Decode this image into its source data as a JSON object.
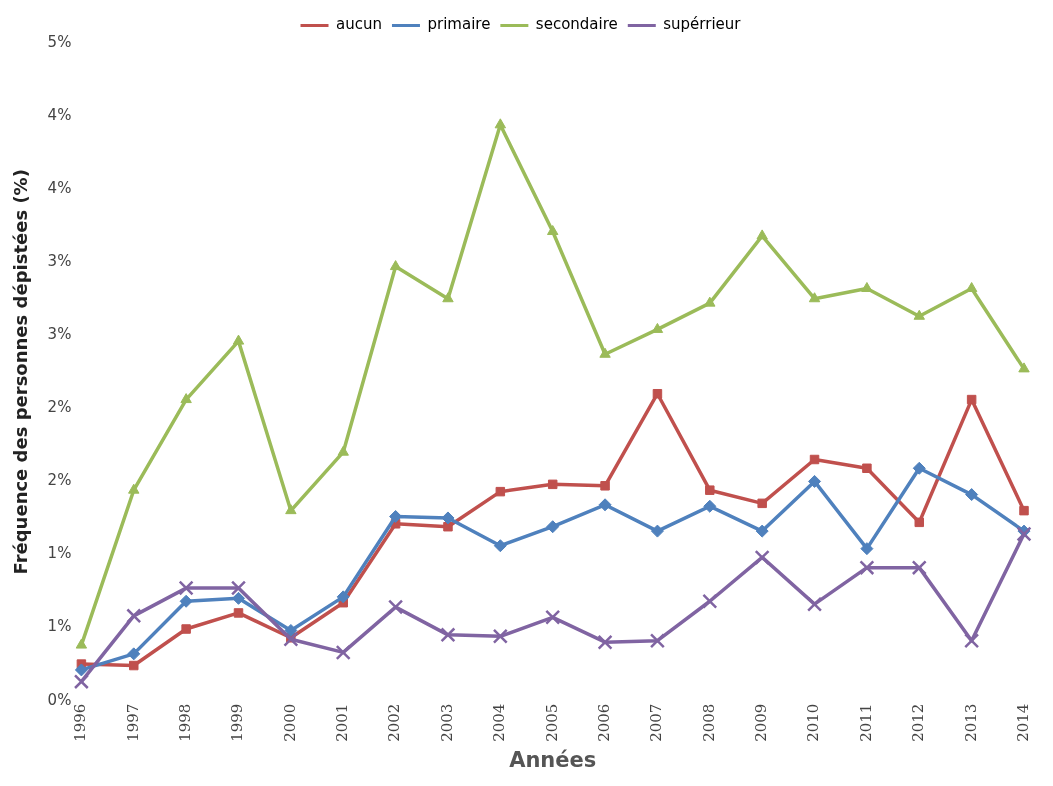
{
  "chart_data": {
    "type": "line",
    "xlabel": "Années",
    "ylabel": "Fréquence des personnes dépistées (%)",
    "categories": [
      "1996",
      "1997",
      "1998",
      "1999",
      "2000",
      "2001",
      "2002",
      "2003",
      "2004",
      "2005",
      "2006",
      "2007",
      "2008",
      "2009",
      "2010",
      "2011",
      "2012",
      "2013",
      "2014"
    ],
    "ylim": [
      0,
      4.5
    ],
    "yticks": [
      {
        "value": 0,
        "label": "0%"
      },
      {
        "value": 0.5,
        "label": "1%"
      },
      {
        "value": 1,
        "label": "1%"
      },
      {
        "value": 1.5,
        "label": "2%"
      },
      {
        "value": 2,
        "label": "2%"
      },
      {
        "value": 2.5,
        "label": "3%"
      },
      {
        "value": 3,
        "label": "3%"
      },
      {
        "value": 3.5,
        "label": "4%"
      },
      {
        "value": 4,
        "label": "4%"
      },
      {
        "value": 4.5,
        "label": "5%"
      }
    ],
    "grid": false,
    "legend": "top",
    "series": [
      {
        "name": "aucun",
        "color": "#c0504d",
        "marker": "square",
        "values": [
          0.25,
          0.24,
          0.49,
          0.6,
          0.43,
          0.67,
          1.21,
          1.19,
          1.43,
          1.48,
          1.47,
          2.1,
          1.44,
          1.35,
          1.65,
          1.59,
          1.22,
          2.06,
          1.3
        ]
      },
      {
        "name": "primaire",
        "color": "#4f81bd",
        "marker": "diamond",
        "values": [
          0.21,
          0.32,
          0.68,
          0.7,
          0.48,
          0.71,
          1.26,
          1.25,
          1.06,
          1.19,
          1.34,
          1.16,
          1.33,
          1.16,
          1.5,
          1.04,
          1.59,
          1.41,
          1.16
        ]
      },
      {
        "name": "secondaire",
        "color": "#9bbb59",
        "marker": "triangle",
        "values": [
          0.38,
          1.44,
          2.06,
          2.46,
          1.3,
          1.7,
          2.97,
          2.75,
          3.94,
          3.21,
          2.37,
          2.54,
          2.72,
          3.18,
          2.75,
          2.82,
          2.63,
          2.82,
          2.27
        ]
      },
      {
        "name": "supérrieur",
        "color": "#8064a2",
        "marker": "cross",
        "values": [
          0.13,
          0.58,
          0.77,
          0.77,
          0.42,
          0.33,
          0.64,
          0.45,
          0.44,
          0.57,
          0.4,
          0.41,
          0.68,
          0.98,
          0.66,
          0.91,
          0.91,
          0.41,
          1.14
        ]
      }
    ]
  }
}
